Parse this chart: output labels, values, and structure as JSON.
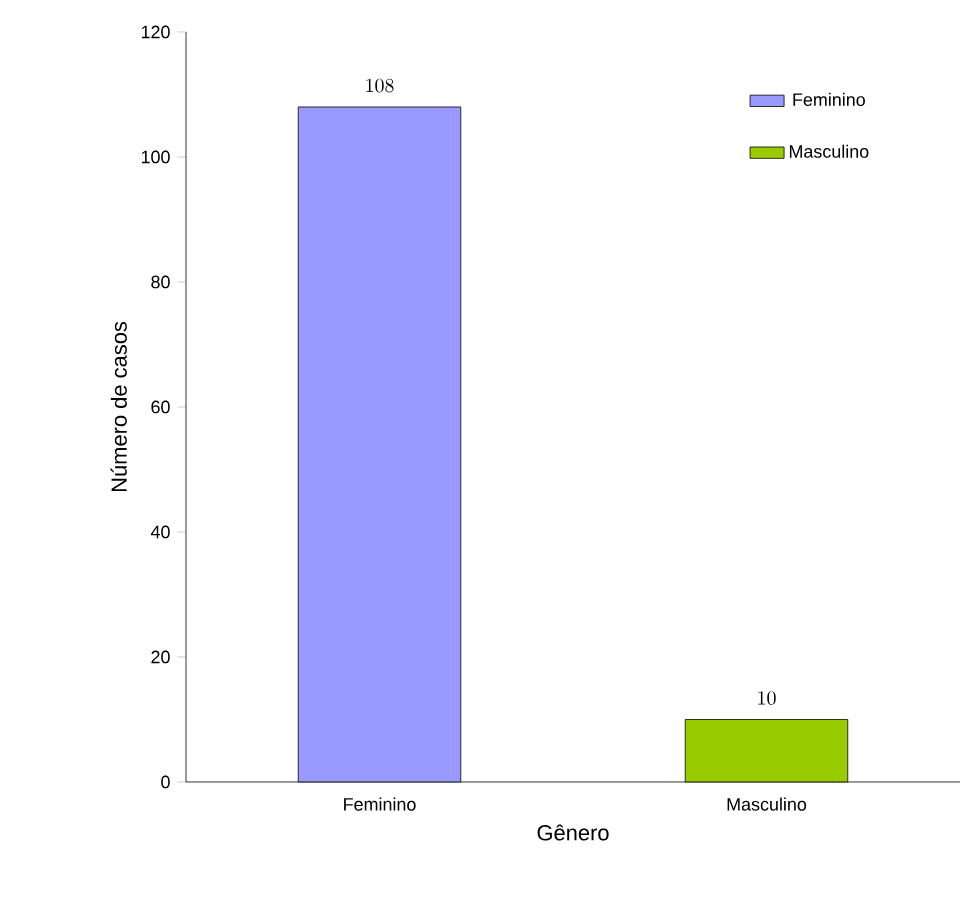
{
  "chart_data": {
    "type": "bar",
    "xlabel": "Gênero",
    "ylabel": "Número de casos",
    "categories": [
      "Feminino",
      "Masculino"
    ],
    "series": [
      {
        "name": "Feminino",
        "color": "#9999ff",
        "values": [
          108,
          null
        ]
      },
      {
        "name": "Masculino",
        "color": "#99cc00",
        "values": [
          null,
          10
        ]
      }
    ],
    "ylim": [
      0,
      120
    ],
    "yticks": [
      0,
      20,
      40,
      60,
      80,
      100,
      120
    ],
    "data_labels": true,
    "legend": "top right"
  }
}
